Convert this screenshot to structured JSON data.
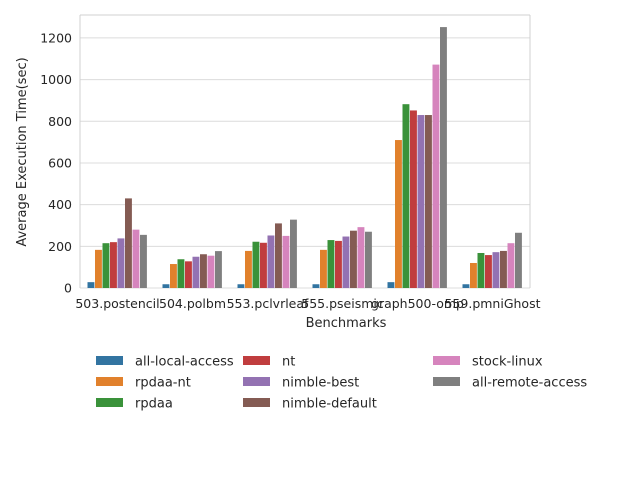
{
  "chart_data": {
    "type": "bar",
    "title": "",
    "xlabel": "Benchmarks",
    "ylabel": "Average Execution Time(sec)",
    "ylim": [
      0,
      1310
    ],
    "yticks": [
      0,
      200,
      400,
      600,
      800,
      1000,
      1200
    ],
    "grid": "horizontal",
    "legend_position": "bottom",
    "categories": [
      "503.postencil",
      "504.polbm",
      "553.pclvrleaf",
      "555.pseismic",
      "graph500-omp",
      "559.pmniGhost"
    ],
    "series": [
      {
        "name": "all-local-access",
        "color": "#3274a1",
        "values": [
          28,
          18,
          18,
          18,
          28,
          18
        ]
      },
      {
        "name": "rpdaa-nt",
        "color": "#e1812c",
        "values": [
          183,
          115,
          178,
          183,
          710,
          120
        ]
      },
      {
        "name": "rpdaa",
        "color": "#3a923a",
        "values": [
          215,
          138,
          222,
          230,
          882,
          168
        ]
      },
      {
        "name": "nt",
        "color": "#c03d3e",
        "values": [
          220,
          128,
          217,
          226,
          852,
          158
        ]
      },
      {
        "name": "nimble-best",
        "color": "#9372b2",
        "values": [
          238,
          150,
          252,
          247,
          830,
          172
        ]
      },
      {
        "name": "nimble-default",
        "color": "#845b53",
        "values": [
          430,
          162,
          310,
          275,
          830,
          178
        ]
      },
      {
        "name": "stock-linux",
        "color": "#d684bd",
        "values": [
          280,
          155,
          250,
          292,
          1072,
          215
        ]
      },
      {
        "name": "all-remote-access",
        "color": "#7f7f7f",
        "values": [
          255,
          177,
          328,
          270,
          1252,
          265
        ]
      }
    ]
  }
}
